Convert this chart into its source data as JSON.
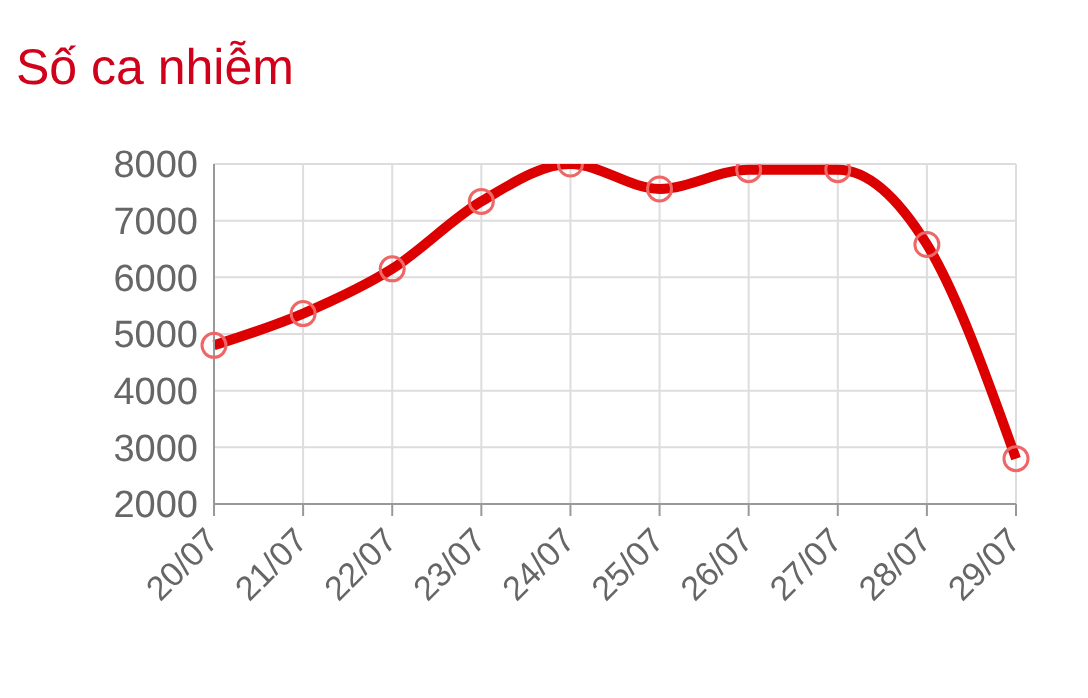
{
  "chart_data": {
    "type": "line",
    "title": "Số ca nhiễm",
    "categories": [
      "20/07",
      "21/07",
      "22/07",
      "23/07",
      "24/07",
      "25/07",
      "26/07",
      "27/07",
      "28/07",
      "29/07"
    ],
    "series": [
      {
        "color": "#dd0000",
        "values": [
          4800,
          5360,
          6150,
          7340,
          8000,
          7560,
          7900,
          7900,
          6580,
          2800
        ]
      }
    ],
    "ylim": [
      2000,
      8000
    ],
    "yticks": [
      2000,
      3000,
      4000,
      5000,
      6000,
      7000,
      8000
    ],
    "grid": true,
    "marker": "circle",
    "line_style": "solid",
    "legend": false
  }
}
